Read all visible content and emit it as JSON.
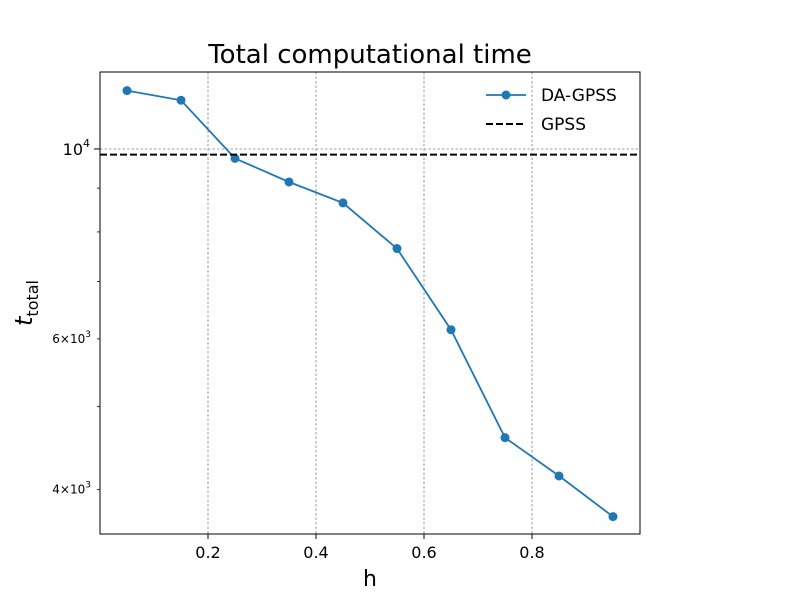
{
  "chart_data": {
    "type": "line",
    "title": "Total computational time",
    "xlabel": "h",
    "ylabel_main": "t",
    "ylabel_sub": "total",
    "xlim": [
      0.0,
      1.0
    ],
    "ylim": [
      3550,
      12300
    ],
    "yscale": "log",
    "grid": true,
    "legend_position": "top-right",
    "x_ticks": [
      {
        "value": 0.2,
        "label": "0.2"
      },
      {
        "value": 0.4,
        "label": "0.4"
      },
      {
        "value": 0.6,
        "label": "0.6"
      },
      {
        "value": 0.8,
        "label": "0.8"
      }
    ],
    "y_major_ticks": [
      {
        "value": 10000,
        "base": "10",
        "exp": "4"
      }
    ],
    "y_minor_ticks": [
      {
        "value": 4000,
        "mant": "4",
        "base": "10",
        "exp": "3"
      },
      {
        "value": 5000
      },
      {
        "value": 6000,
        "mant": "6",
        "base": "10",
        "exp": "3"
      },
      {
        "value": 7000
      },
      {
        "value": 8000
      },
      {
        "value": 9000
      }
    ],
    "series": [
      {
        "name": "DA-GPSS",
        "color": "#1f77b4",
        "style": "solid",
        "marker": "circle",
        "x": [
          0.05,
          0.15,
          0.25,
          0.35,
          0.45,
          0.55,
          0.65,
          0.75,
          0.85,
          0.95
        ],
        "y": [
          11700,
          11400,
          9750,
          9150,
          8650,
          7650,
          6150,
          4600,
          4150,
          3720
        ]
      },
      {
        "name": "GPSS",
        "color": "#000000",
        "style": "dashed",
        "hline": 9850
      }
    ]
  }
}
